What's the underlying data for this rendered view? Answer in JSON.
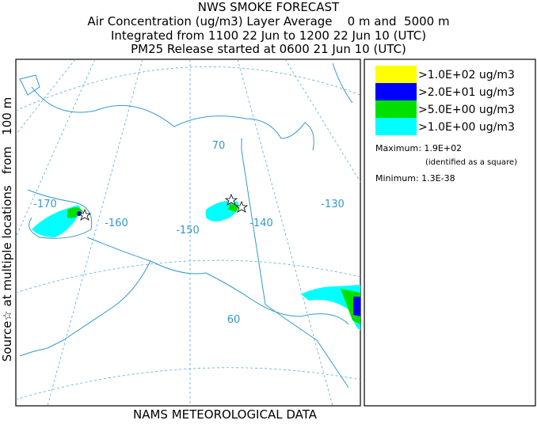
{
  "header": {
    "title": "NWS SMOKE FORECAST",
    "lines": [
      "Air Concentration (ug/m3) Layer Average    0 m and  5000 m",
      "Integrated from 1100 22 Jun to 1200 22 Jun 10 (UTC)",
      "PM25 Release started at 0600 21 Jun 10 (UTC)"
    ]
  },
  "side_label": "Source☆ at multiple locations   from   100 m",
  "map": {
    "labels": [
      "-170",
      "-160",
      "-150",
      "-140",
      "-130",
      "70",
      "60"
    ]
  },
  "legend": {
    "entries": [
      {
        "label": ">1.0E+02 ug/m3",
        "color": "#ffff00"
      },
      {
        "label": ">2.0E+01 ug/m3",
        "color": "#0000ff"
      },
      {
        "label": ">5.0E+00 ug/m3",
        "color": "#00e000"
      },
      {
        "label": ">1.0E+00 ug/m3",
        "color": "#00ffff"
      }
    ],
    "maximum": "Maximum: 1.9E+02",
    "note": "(identified as a square)",
    "minimum": "Minimum: 1.3E-38"
  },
  "footer": "NAMS METEOROLOGICAL DATA"
}
